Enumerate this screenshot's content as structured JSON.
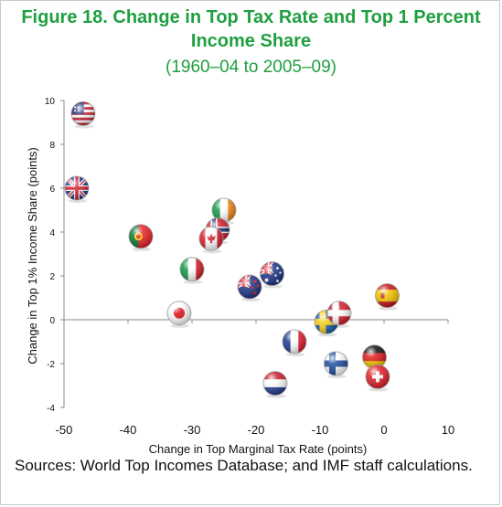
{
  "figure": {
    "title": "Figure 18. Change in Top Tax Rate and Top 1 Percent Income Share",
    "subtitle": "(1960–04 to 2005–09)",
    "source": "Sources: World Top Incomes Database; and IMF staff calculations."
  },
  "chart_data": {
    "type": "scatter",
    "title": "Figure 18. Change in Top Tax Rate and Top 1 Percent Income Share",
    "subtitle": "(1960–04 to 2005–09)",
    "xlabel": "Change in Top Marginal Tax Rate (points)",
    "ylabel": "Change in Top 1% Income Share (points)",
    "xlim": [
      -50,
      10
    ],
    "ylim": [
      -4,
      10
    ],
    "xticks": [
      -50,
      -40,
      -30,
      -20,
      -10,
      0,
      10
    ],
    "yticks": [
      -4,
      -2,
      0,
      2,
      4,
      6,
      8,
      10
    ],
    "grid": false,
    "legend": "none",
    "points": [
      {
        "flag": "united-states",
        "x": -47,
        "y": 9.4
      },
      {
        "flag": "united-kingdom",
        "x": -48,
        "y": 6.0
      },
      {
        "flag": "portugal",
        "x": -38,
        "y": 3.8
      },
      {
        "flag": "ireland",
        "x": -25,
        "y": 5.0
      },
      {
        "flag": "norway",
        "x": -26,
        "y": 4.1
      },
      {
        "flag": "canada",
        "x": -27,
        "y": 3.7
      },
      {
        "flag": "italy",
        "x": -30,
        "y": 2.3
      },
      {
        "flag": "japan",
        "x": -32,
        "y": 0.3
      },
      {
        "flag": "australia",
        "x": -17.5,
        "y": 2.1
      },
      {
        "flag": "new-zealand",
        "x": -21,
        "y": 1.5
      },
      {
        "flag": "sweden",
        "x": -9,
        "y": -0.1
      },
      {
        "flag": "denmark",
        "x": -7,
        "y": 0.3
      },
      {
        "flag": "spain",
        "x": 0.5,
        "y": 1.1
      },
      {
        "flag": "france",
        "x": -14,
        "y": -1.0
      },
      {
        "flag": "finland",
        "x": -7.5,
        "y": -2.0
      },
      {
        "flag": "germany",
        "x": -1.5,
        "y": -1.7
      },
      {
        "flag": "switzerland",
        "x": -1,
        "y": -2.6
      },
      {
        "flag": "netherlands",
        "x": -17,
        "y": -2.9
      }
    ]
  },
  "colors": {
    "title": "#1fa040",
    "axis": "#8a8a8a",
    "text": "#111111"
  }
}
